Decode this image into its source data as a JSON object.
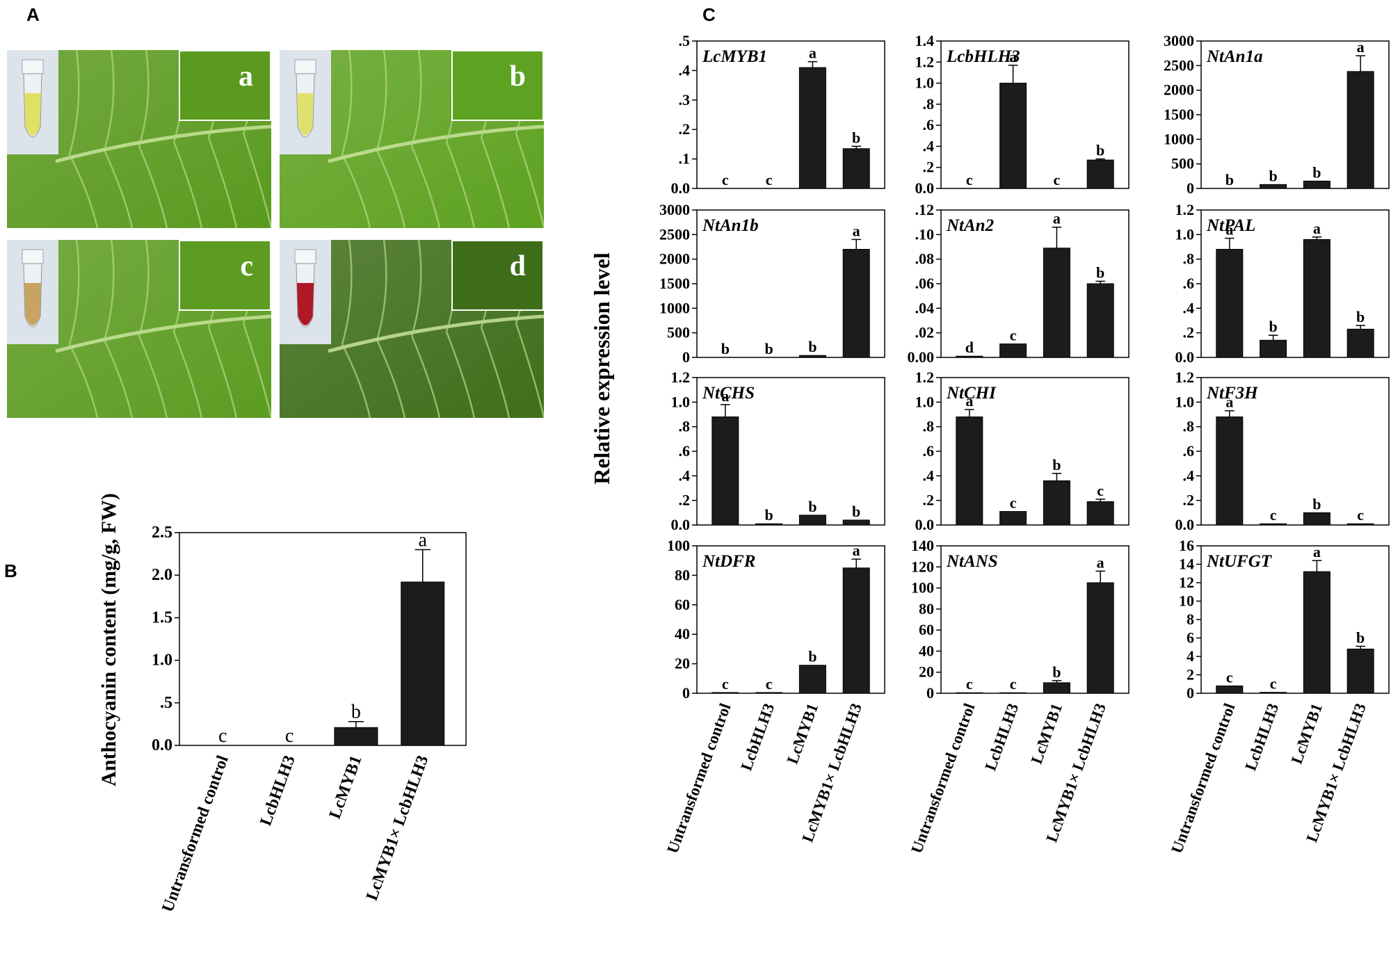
{
  "panels": {
    "A": "A",
    "B": "B",
    "C": "C"
  },
  "photos": [
    {
      "letter": "a",
      "tube_color": "#dfe066",
      "tint": "#5a9a1f"
    },
    {
      "letter": "b",
      "tube_color": "#dfe070",
      "tint": "#5ea221"
    },
    {
      "letter": "c",
      "tube_color": "#c8a460",
      "tint": "#5c9c22"
    },
    {
      "letter": "d",
      "tube_color": "#b01828",
      "tint": "#3f6e1a"
    }
  ],
  "chart_data": [
    {
      "panel": "B",
      "type": "bar",
      "ylabel": "Anthocyanin content (mg/g, FW)",
      "categories": [
        "Untransformed control",
        "LcbHLH3",
        "LcMYB1",
        "LcMYB1× LcbHLH3"
      ],
      "values": [
        0,
        0,
        0.21,
        1.92
      ],
      "errors": [
        0,
        0,
        0.07,
        0.38
      ],
      "letters": [
        "c",
        "c",
        "b",
        "a"
      ],
      "ylim": [
        0,
        2.5
      ],
      "ticks": [
        "0.0",
        ".5",
        "1.0",
        "1.5",
        "2.0",
        "2.5"
      ],
      "tick_values": [
        0,
        0.5,
        1.0,
        1.5,
        2.0,
        2.5
      ]
    },
    {
      "panel": "C",
      "type": "bar",
      "ylabel": "Relative expression level",
      "categories": [
        "Untransformed control",
        "LcbHLH3",
        "LcMYB1",
        "LcMYB1× LcbHLH3"
      ],
      "subplots": [
        {
          "title": "LcMYB1",
          "values": [
            0,
            0,
            0.41,
            0.135
          ],
          "errors": [
            0,
            0,
            0.02,
            0.008
          ],
          "letters": [
            "c",
            "c",
            "a",
            "b"
          ],
          "ylim": [
            0,
            0.5
          ],
          "ticks": [
            "0.0",
            ".1",
            ".2",
            ".3",
            ".4",
            ".5"
          ],
          "tick_values": [
            0,
            0.1,
            0.2,
            0.3,
            0.4,
            0.5
          ]
        },
        {
          "title": "LcbHLH3",
          "values": [
            0,
            1.0,
            0,
            0.27
          ],
          "errors": [
            0,
            0.17,
            0,
            0.01
          ],
          "letters": [
            "c",
            "a",
            "c",
            "b"
          ],
          "ylim": [
            0,
            1.4
          ],
          "ticks": [
            "0.0",
            ".2",
            ".4",
            ".6",
            ".8",
            "1.0",
            "1.2",
            "1.4"
          ],
          "tick_values": [
            0,
            0.2,
            0.4,
            0.6,
            0.8,
            1.0,
            1.2,
            1.4
          ]
        },
        {
          "title": "NtAn1a",
          "values": [
            0,
            80,
            150,
            2380
          ],
          "errors": [
            0,
            0,
            0,
            320
          ],
          "letters": [
            "b",
            "b",
            "b",
            "a"
          ],
          "ylim": [
            0,
            3000
          ],
          "ticks": [
            "0",
            "500",
            "1000",
            "1500",
            "2000",
            "2500",
            "3000"
          ],
          "tick_values": [
            0,
            500,
            1000,
            1500,
            2000,
            2500,
            3000
          ]
        },
        {
          "title": "NtAn1b",
          "values": [
            0,
            0,
            40,
            2200
          ],
          "errors": [
            0,
            0,
            0,
            200
          ],
          "letters": [
            "b",
            "b",
            "b",
            "a"
          ],
          "ylim": [
            0,
            3000
          ],
          "ticks": [
            "0",
            "500",
            "1000",
            "1500",
            "2000",
            "2500",
            "3000"
          ],
          "tick_values": [
            0,
            500,
            1000,
            1500,
            2000,
            2500,
            3000
          ]
        },
        {
          "title": "NtAn2",
          "values": [
            0.001,
            0.011,
            0.089,
            0.06
          ],
          "errors": [
            0,
            0,
            0.017,
            0.002
          ],
          "letters": [
            "d",
            "c",
            "a",
            "b"
          ],
          "ylim": [
            0,
            0.12
          ],
          "ticks": [
            "0.00",
            ".02",
            ".04",
            ".06",
            ".08",
            ".10",
            ".12"
          ],
          "tick_values": [
            0,
            0.02,
            0.04,
            0.06,
            0.08,
            0.1,
            0.12
          ]
        },
        {
          "title": "NtPAL",
          "values": [
            0.88,
            0.14,
            0.96,
            0.23
          ],
          "errors": [
            0.09,
            0.04,
            0.02,
            0.03
          ],
          "letters": [
            "a",
            "b",
            "a",
            "b"
          ],
          "ylim": [
            0,
            1.2
          ],
          "ticks": [
            "0.0",
            ".2",
            ".4",
            ".6",
            ".8",
            "1.0",
            "1.2"
          ],
          "tick_values": [
            0,
            0.2,
            0.4,
            0.6,
            0.8,
            1.0,
            1.2
          ]
        },
        {
          "title": "NtCHS",
          "values": [
            0.88,
            0.01,
            0.08,
            0.04
          ],
          "errors": [
            0.1,
            0,
            0,
            0
          ],
          "letters": [
            "a",
            "b",
            "b",
            "b"
          ],
          "ylim": [
            0,
            1.2
          ],
          "ticks": [
            "0.0",
            ".2",
            ".4",
            ".6",
            ".8",
            "1.0",
            "1.2"
          ],
          "tick_values": [
            0,
            0.2,
            0.4,
            0.6,
            0.8,
            1.0,
            1.2
          ]
        },
        {
          "title": "NtCHI",
          "values": [
            0.88,
            0.11,
            0.36,
            0.19
          ],
          "errors": [
            0.06,
            0,
            0.06,
            0.02
          ],
          "letters": [
            "a",
            "c",
            "b",
            "c"
          ],
          "ylim": [
            0,
            1.2
          ],
          "ticks": [
            "0.0",
            ".2",
            ".4",
            ".6",
            ".8",
            "1.0",
            "1.2"
          ],
          "tick_values": [
            0,
            0.2,
            0.4,
            0.6,
            0.8,
            1.0,
            1.2
          ]
        },
        {
          "title": "NtF3H",
          "values": [
            0.88,
            0.01,
            0.1,
            0.01
          ],
          "errors": [
            0.05,
            0,
            0,
            0
          ],
          "letters": [
            "a",
            "c",
            "b",
            "c"
          ],
          "ylim": [
            0,
            1.2
          ],
          "ticks": [
            "0.0",
            ".2",
            ".4",
            ".6",
            ".8",
            "1.0",
            "1.2"
          ],
          "tick_values": [
            0,
            0.2,
            0.4,
            0.6,
            0.8,
            1.0,
            1.2
          ]
        },
        {
          "title": "NtDFR",
          "values": [
            0.5,
            0.5,
            19,
            85
          ],
          "errors": [
            0,
            0,
            0,
            6
          ],
          "letters": [
            "c",
            "c",
            "b",
            "a"
          ],
          "ylim": [
            0,
            100
          ],
          "ticks": [
            "0",
            "20",
            "40",
            "60",
            "80",
            "100"
          ],
          "tick_values": [
            0,
            20,
            40,
            60,
            80,
            100
          ]
        },
        {
          "title": "NtANS",
          "values": [
            0.5,
            0.5,
            10,
            105
          ],
          "errors": [
            0,
            0,
            2,
            11
          ],
          "letters": [
            "c",
            "c",
            "b",
            "a"
          ],
          "ylim": [
            0,
            140
          ],
          "ticks": [
            "0",
            "20",
            "40",
            "60",
            "80",
            "100",
            "120",
            "140"
          ],
          "tick_values": [
            0,
            20,
            40,
            60,
            80,
            100,
            120,
            140
          ]
        },
        {
          "title": "NtUFGT",
          "values": [
            0.8,
            0.1,
            13.2,
            4.8
          ],
          "errors": [
            0,
            0,
            1.2,
            0.3
          ],
          "letters": [
            "c",
            "c",
            "a",
            "b"
          ],
          "ylim": [
            0,
            16
          ],
          "ticks": [
            "0",
            "2",
            "4",
            "6",
            "8",
            "10",
            "12",
            "14",
            "16"
          ],
          "tick_values": [
            0,
            2,
            4,
            6,
            8,
            10,
            12,
            14,
            16
          ]
        }
      ]
    }
  ]
}
